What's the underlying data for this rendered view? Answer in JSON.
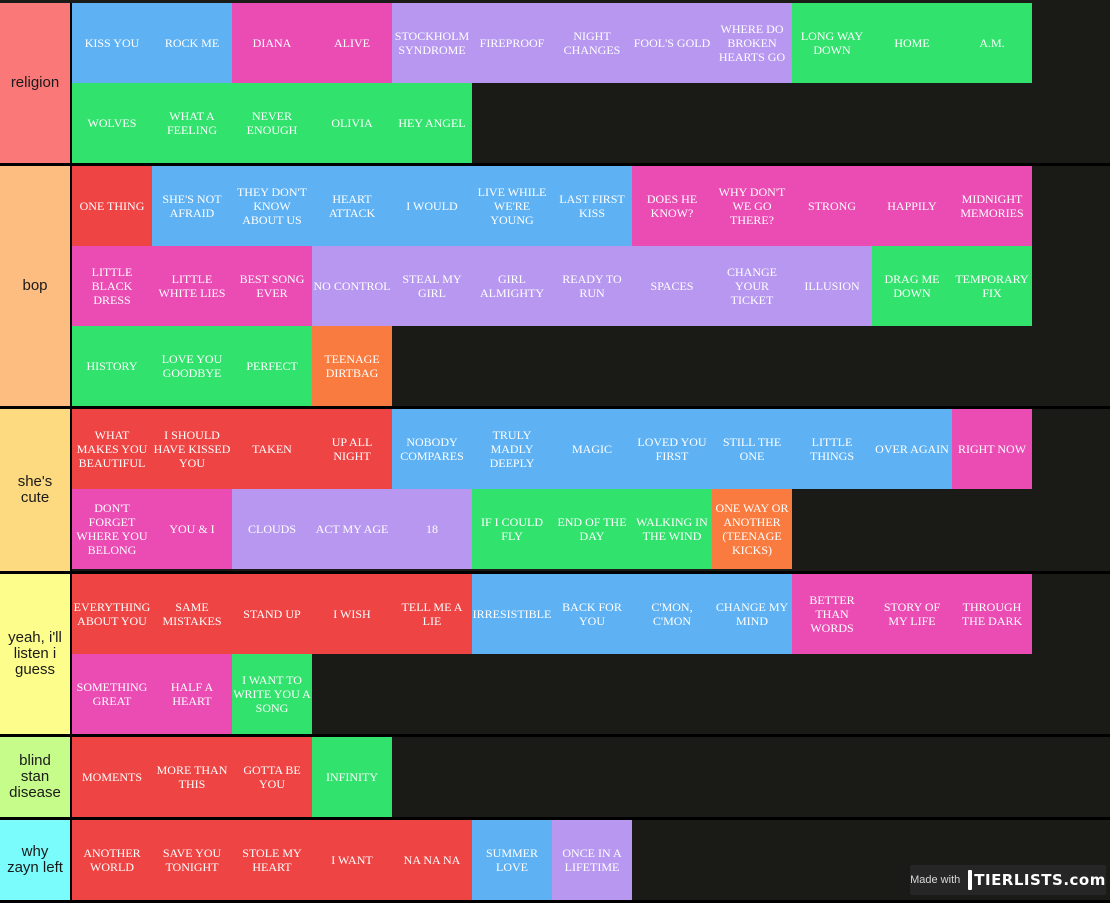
{
  "colors": {
    "blue": "#5eb2f4",
    "pink": "#ea4cb4",
    "lavender": "#b797f0",
    "green": "#31e36c",
    "red": "#ef4444",
    "orange": "#f97b3f"
  },
  "tiers": [
    {
      "label": "religion",
      "color": "#fb7878",
      "items": [
        {
          "text": "KISS YOU",
          "color": "blue"
        },
        {
          "text": "ROCK ME",
          "color": "blue"
        },
        {
          "text": "DIANA",
          "color": "pink"
        },
        {
          "text": "ALIVE",
          "color": "pink"
        },
        {
          "text": "STOCKHOLM SYNDROME",
          "color": "lavender"
        },
        {
          "text": "FIREPROOF",
          "color": "lavender"
        },
        {
          "text": "NIGHT CHANGES",
          "color": "lavender"
        },
        {
          "text": "FOOL'S GOLD",
          "color": "lavender"
        },
        {
          "text": "WHERE DO BROKEN HEARTS GO",
          "color": "lavender"
        },
        {
          "text": "LONG WAY DOWN",
          "color": "green"
        },
        {
          "text": "HOME",
          "color": "green"
        },
        {
          "text": "A.M.",
          "color": "green"
        },
        {
          "text": "WOLVES",
          "color": "green"
        },
        {
          "text": "WHAT A FEELING",
          "color": "green"
        },
        {
          "text": "NEVER ENOUGH",
          "color": "green"
        },
        {
          "text": "OLIVIA",
          "color": "green"
        },
        {
          "text": "HEY ANGEL",
          "color": "green"
        }
      ]
    },
    {
      "label": "bop",
      "color": "#fdbc80",
      "items": [
        {
          "text": "ONE THING",
          "color": "red"
        },
        {
          "text": "SHE'S NOT AFRAID",
          "color": "blue"
        },
        {
          "text": "THEY DON'T KNOW ABOUT US",
          "color": "blue"
        },
        {
          "text": "HEART ATTACK",
          "color": "blue"
        },
        {
          "text": "I WOULD",
          "color": "blue"
        },
        {
          "text": "LIVE WHILE WE'RE YOUNG",
          "color": "blue"
        },
        {
          "text": "LAST FIRST KISS",
          "color": "blue"
        },
        {
          "text": "DOES HE KNOW?",
          "color": "pink"
        },
        {
          "text": "WHY DON'T WE GO THERE?",
          "color": "pink"
        },
        {
          "text": "STRONG",
          "color": "pink"
        },
        {
          "text": "HAPPILY",
          "color": "pink"
        },
        {
          "text": "MIDNIGHT MEMORIES",
          "color": "pink"
        },
        {
          "text": "LITTLE BLACK DRESS",
          "color": "pink"
        },
        {
          "text": "LITTLE WHITE LIES",
          "color": "pink"
        },
        {
          "text": "BEST SONG EVER",
          "color": "pink"
        },
        {
          "text": "NO CONTROL",
          "color": "lavender"
        },
        {
          "text": "STEAL MY GIRL",
          "color": "lavender"
        },
        {
          "text": "GIRL ALMIGHTY",
          "color": "lavender"
        },
        {
          "text": "READY TO RUN",
          "color": "lavender"
        },
        {
          "text": "SPACES",
          "color": "lavender"
        },
        {
          "text": "CHANGE YOUR TICKET",
          "color": "lavender"
        },
        {
          "text": "ILLUSION",
          "color": "lavender"
        },
        {
          "text": "DRAG ME DOWN",
          "color": "green"
        },
        {
          "text": "TEMPORARY FIX",
          "color": "green"
        },
        {
          "text": "HISTORY",
          "color": "green"
        },
        {
          "text": "LOVE YOU GOODBYE",
          "color": "green"
        },
        {
          "text": "PERFECT",
          "color": "green"
        },
        {
          "text": "TEENAGE DIRTBAG",
          "color": "orange"
        }
      ]
    },
    {
      "label": "she's cute",
      "color": "#fdda80",
      "items": [
        {
          "text": "WHAT MAKES YOU BEAUTIFUL",
          "color": "red"
        },
        {
          "text": "I SHOULD HAVE KISSED YOU",
          "color": "red"
        },
        {
          "text": "TAKEN",
          "color": "red"
        },
        {
          "text": "UP ALL NIGHT",
          "color": "red"
        },
        {
          "text": "NOBODY COMPARES",
          "color": "blue"
        },
        {
          "text": "TRULY MADLY DEEPLY",
          "color": "blue"
        },
        {
          "text": "MAGIC",
          "color": "blue"
        },
        {
          "text": "LOVED YOU FIRST",
          "color": "blue"
        },
        {
          "text": "STILL THE ONE",
          "color": "blue"
        },
        {
          "text": "LITTLE THINGS",
          "color": "blue"
        },
        {
          "text": "OVER AGAIN",
          "color": "blue"
        },
        {
          "text": "RIGHT NOW",
          "color": "pink"
        },
        {
          "text": "DON'T FORGET WHERE YOU BELONG",
          "color": "pink"
        },
        {
          "text": "YOU & I",
          "color": "pink"
        },
        {
          "text": "CLOUDS",
          "color": "lavender"
        },
        {
          "text": "ACT MY AGE",
          "color": "lavender"
        },
        {
          "text": "18",
          "color": "lavender"
        },
        {
          "text": "IF I COULD FLY",
          "color": "green"
        },
        {
          "text": "END OF THE DAY",
          "color": "green"
        },
        {
          "text": "WALKING IN THE WIND",
          "color": "green"
        },
        {
          "text": "ONE WAY OR ANOTHER (TEENAGE KICKS)",
          "color": "orange"
        }
      ]
    },
    {
      "label": "yeah, i'll listen i guess",
      "color": "#fdfd8c",
      "items": [
        {
          "text": "EVERYTHING ABOUT YOU",
          "color": "red"
        },
        {
          "text": "SAME MISTAKES",
          "color": "red"
        },
        {
          "text": "STAND UP",
          "color": "red"
        },
        {
          "text": "I WISH",
          "color": "red"
        },
        {
          "text": "TELL ME A LIE",
          "color": "red"
        },
        {
          "text": "IRRESISTIBLE",
          "color": "blue"
        },
        {
          "text": "BACK FOR YOU",
          "color": "blue"
        },
        {
          "text": "C'MON, C'MON",
          "color": "blue"
        },
        {
          "text": "CHANGE MY MIND",
          "color": "blue"
        },
        {
          "text": "BETTER THAN WORDS",
          "color": "pink"
        },
        {
          "text": "STORY OF MY LIFE",
          "color": "pink"
        },
        {
          "text": "THROUGH THE DARK",
          "color": "pink"
        },
        {
          "text": "SOMETHING GREAT",
          "color": "pink"
        },
        {
          "text": "HALF A HEART",
          "color": "pink"
        },
        {
          "text": "I WANT TO WRITE YOU A SONG",
          "color": "green"
        }
      ]
    },
    {
      "label": "blind stan disease",
      "color": "#c6fc8a",
      "items": [
        {
          "text": "MOMENTS",
          "color": "red"
        },
        {
          "text": "MORE THAN THIS",
          "color": "red"
        },
        {
          "text": "GOTTA BE YOU",
          "color": "red"
        },
        {
          "text": "INFINITY",
          "color": "green"
        }
      ]
    },
    {
      "label": "why zayn left",
      "color": "#7bfcfc",
      "items": [
        {
          "text": "ANOTHER WORLD",
          "color": "red"
        },
        {
          "text": "SAVE YOU TONIGHT",
          "color": "red"
        },
        {
          "text": "STOLE MY HEART",
          "color": "red"
        },
        {
          "text": "I WANT",
          "color": "red"
        },
        {
          "text": "NA NA NA",
          "color": "red"
        },
        {
          "text": "SUMMER LOVE",
          "color": "blue"
        },
        {
          "text": "ONCE IN A LIFETIME",
          "color": "lavender"
        }
      ]
    }
  ],
  "watermark": {
    "made_with": "Made with",
    "brand": "TIERLISTS.com"
  }
}
